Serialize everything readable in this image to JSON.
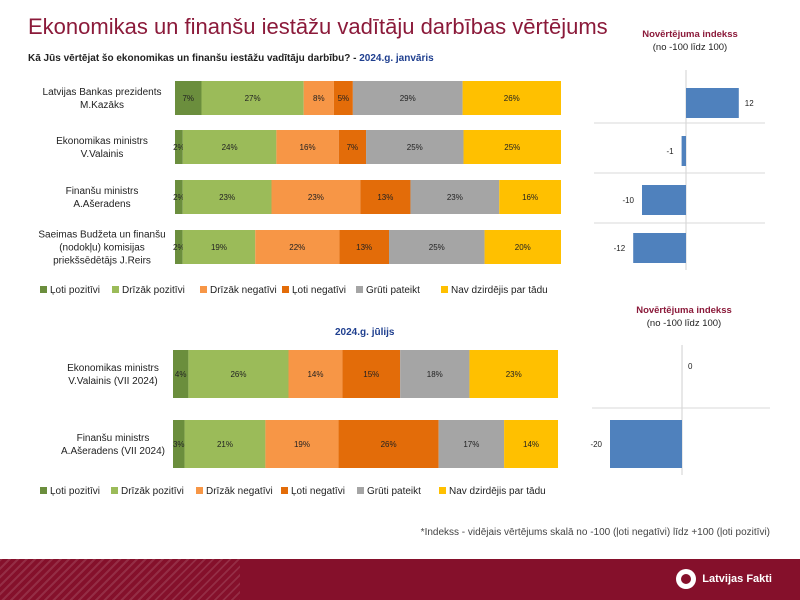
{
  "title": "Ekonomikas un finanšu iestāžu vadītāju darbības vērtējums",
  "question": "Kā Jūs vērtējat šo ekonomikas un finanšu iestāžu vadītāju darbību?",
  "period_sep": " - ",
  "period1": "2024.g. janvāris",
  "period2": "2024.g. jūlijs",
  "index_title": "Novērtējuma indekss",
  "index_subtitle": "(no -100 līdz 100)",
  "footnote": "*Indekss - vidējais vērtējums skalā no -100 (ļoti negatīvi) līdz +100 (ļoti pozitīvi)",
  "brand": "Latvijas Fakti",
  "colors": [
    "#6b8e3d",
    "#9bbb59",
    "#f79646",
    "#e36c09",
    "#a5a5a5",
    "#ffc000"
  ],
  "index_bar_color": "#4f81bd",
  "chart_data": [
    {
      "type": "bar",
      "stacked": "100%",
      "orientation": "horizontal",
      "period": "2024.g. janvāris",
      "categories": [
        "Latvijas Bankas prezidents\nM.Kazāks",
        "Ekonomikas ministrs\nV.Valainis",
        "Finanšu ministrs\nA.Ašeradens",
        "Saeimas Budžeta un finanšu\n(nodokļu) komisijas\npriekšsēdētājs J.Reirs"
      ],
      "series": [
        {
          "name": "Ļoti pozitīvi",
          "values": [
            7,
            2,
            2,
            2
          ]
        },
        {
          "name": "Drīzāk pozitīvi",
          "values": [
            27,
            24,
            23,
            19
          ]
        },
        {
          "name": "Drīzāk negatīvi",
          "values": [
            8,
            16,
            23,
            22
          ]
        },
        {
          "name": "Ļoti negatīvi",
          "values": [
            5,
            7,
            13,
            13
          ]
        },
        {
          "name": "Grūti pateikt",
          "values": [
            29,
            25,
            23,
            25
          ]
        },
        {
          "name": "Nav dzirdējis par tādu",
          "values": [
            26,
            25,
            16,
            20
          ]
        }
      ],
      "legend": "bottom"
    },
    {
      "type": "bar",
      "orientation": "horizontal",
      "title": "Novērtējuma indekss",
      "subtitle": "(no -100 līdz 100)",
      "categories": [
        "M.Kazāks",
        "V.Valainis",
        "A.Ašeradens",
        "J.Reirs"
      ],
      "values": [
        12,
        -1,
        -10,
        -12
      ]
    },
    {
      "type": "bar",
      "stacked": "100%",
      "orientation": "horizontal",
      "period": "2024.g. jūlijs",
      "categories": [
        "Ekonomikas ministrs\nV.Valainis (VII 2024)",
        "Finanšu ministrs\nA.Ašeradens (VII 2024)"
      ],
      "series": [
        {
          "name": "Ļoti pozitīvi",
          "values": [
            4,
            3
          ]
        },
        {
          "name": "Drīzāk pozitīvi",
          "values": [
            26,
            21
          ]
        },
        {
          "name": "Drīzāk negatīvi",
          "values": [
            14,
            19
          ]
        },
        {
          "name": "Ļoti negatīvi",
          "values": [
            15,
            26
          ]
        },
        {
          "name": "Grūti pateikt",
          "values": [
            18,
            17
          ]
        },
        {
          "name": "Nav dzirdējis par tādu",
          "values": [
            23,
            14
          ]
        }
      ],
      "legend": "bottom"
    },
    {
      "type": "bar",
      "orientation": "horizontal",
      "title": "Novērtējuma indekss",
      "subtitle": "(no -100 līdz 100)",
      "categories": [
        "V.Valainis (VII 2024)",
        "A.Ašeradens (VII 2024)"
      ],
      "values": [
        0,
        -20
      ]
    }
  ]
}
